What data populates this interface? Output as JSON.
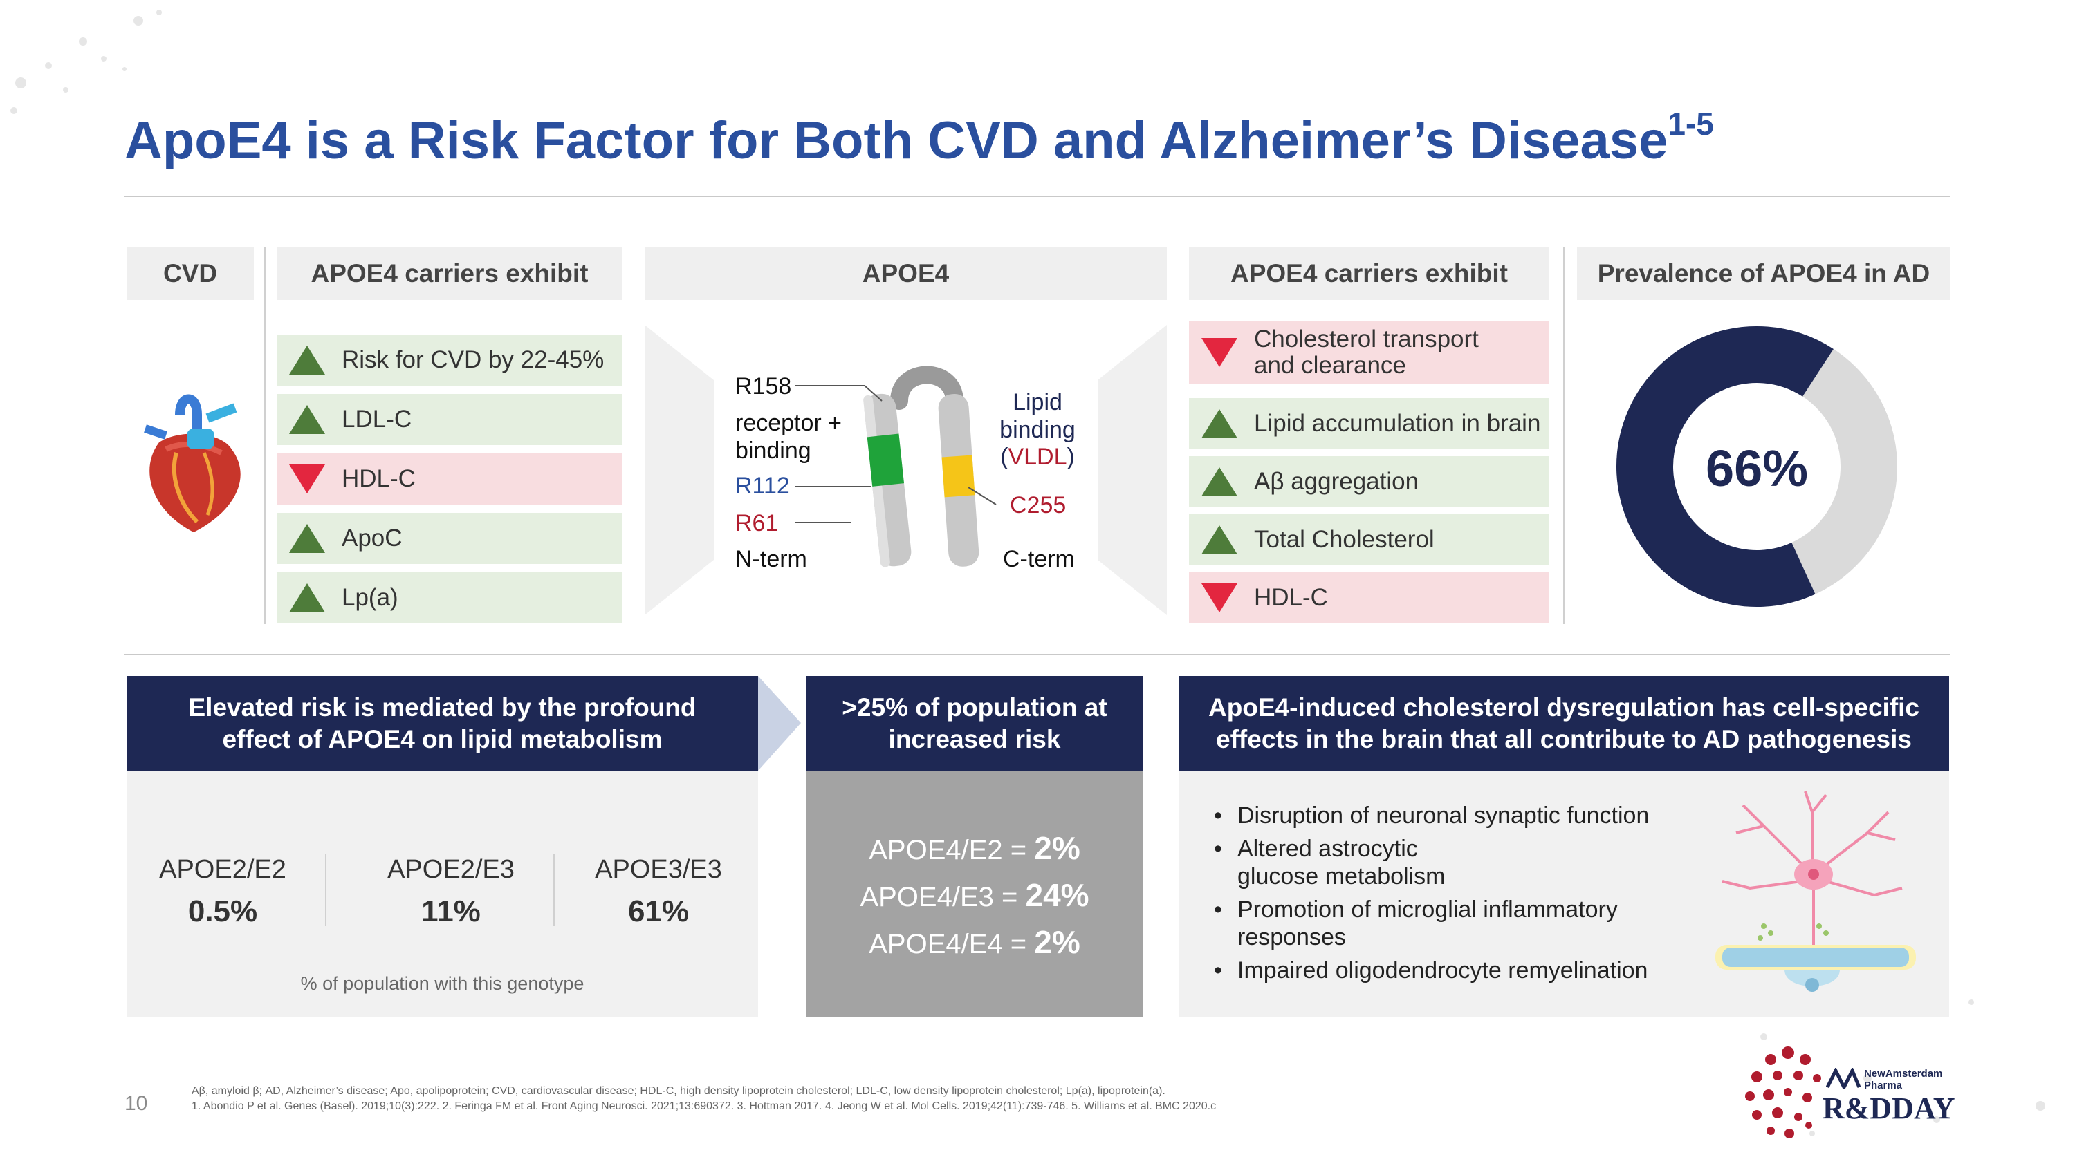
{
  "title": {
    "main": "ApoE4 is a Risk Factor for Both CVD and Alzheimer’s Disease",
    "sup": "1-5"
  },
  "headers": {
    "cvd": "CVD",
    "carriers_left": "APOE4 carriers exhibit",
    "apoe4": "APOE4",
    "carriers_right": "APOE4 carriers exhibit",
    "prevalence": "Prevalence of APOE4 in AD"
  },
  "cvd_effects": [
    {
      "label": "Risk for CVD by 22-45%",
      "direction": "up"
    },
    {
      "label": "LDL-C",
      "direction": "up"
    },
    {
      "label": "HDL-C",
      "direction": "down"
    },
    {
      "label": "ApoC",
      "direction": "up"
    },
    {
      "label": "Lp(a)",
      "direction": "up"
    }
  ],
  "apoe4_diagram": {
    "r158": "R158",
    "receptor_binding": "receptor + binding",
    "r112": "R112",
    "r61": "R61",
    "nterm": "N-term",
    "lipid_binding": "Lipid binding",
    "vldl": "VLDL",
    "c255": "C255",
    "cterm": "C-term"
  },
  "brain_effects": [
    {
      "label": "Cholesterol transport and clearance",
      "direction": "down"
    },
    {
      "label": "Lipid accumulation in brain",
      "direction": "up"
    },
    {
      "label": "Aβ aggregation",
      "direction": "up"
    },
    {
      "label": "Total Cholesterol",
      "direction": "up"
    },
    {
      "label": "HDL-C",
      "direction": "down"
    }
  ],
  "prevalence": {
    "value_label": "66%",
    "fraction": 0.66
  },
  "panel1": {
    "header": "Elevated risk is mediated by the profound effect of APOE4 on lipid metabolism",
    "genotypes": [
      {
        "label": "APOE2/E2",
        "value": "0.5%"
      },
      {
        "label": "APOE2/E3",
        "value": "11%"
      },
      {
        "label": "APOE3/E3",
        "value": "61%"
      }
    ],
    "note": "% of population with this genotype"
  },
  "panel2": {
    "header": ">25% of population at increased risk",
    "rows": [
      {
        "label": "APOE4/E2 =",
        "value": "2%"
      },
      {
        "label": "APOE4/E3 =",
        "value": "24%"
      },
      {
        "label": "APOE4/E4 =",
        "value": "2%"
      }
    ]
  },
  "panel3": {
    "header": "ApoE4-induced cholesterol dysregulation has cell-specific effects in the brain that all contribute to AD pathogenesis",
    "bullets": [
      "Disruption of neuronal synaptic function",
      "Altered astrocytic glucose metabolism",
      "Promotion of microglial inflammatory responses",
      "Impaired oligodendrocyte remyelination"
    ]
  },
  "footer": {
    "page": "10",
    "abbrev": "Aβ, amyloid β; AD, Alzheimer’s disease; Apo, apolipoprotein; CVD, cardiovascular disease; HDL-C, high density lipoprotein cholesterol; LDL-C, low density lipoprotein cholesterol; Lp(a), lipoprotein(a).",
    "refs": "1. Abondio P et al. Genes (Basel). 2019;10(3):222. 2. Feringa FM et al. Front Aging Neurosci. 2021;13:690372. 3. Hottman 2017. 4. Jeong W et al. Mol Cells. 2019;42(11):739-746. 5. Williams et al. BMC 2020.c",
    "logo_company": "NewAmsterdam Pharma",
    "logo_event": "R&DDAY"
  },
  "colors": {
    "title": "#2a4f9e",
    "navy": "#1e2854",
    "up": "#4e7c3a",
    "down": "#e3263f",
    "up_bg": "#e5efe0",
    "down_bg": "#f8dde0",
    "accent_red": "#b01c2e"
  }
}
